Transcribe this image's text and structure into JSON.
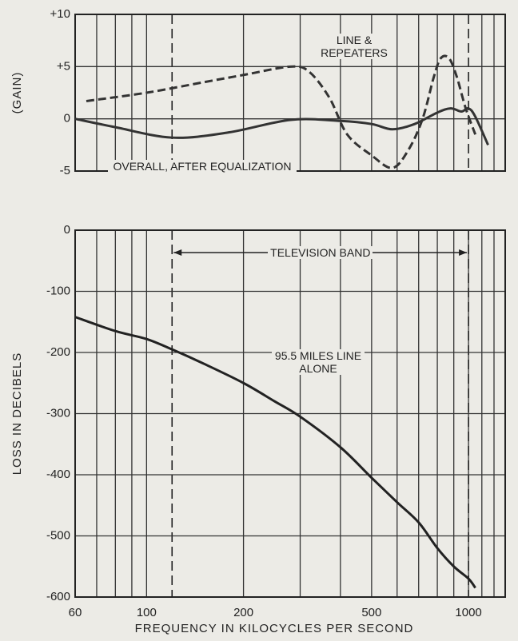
{
  "chart_data": [
    {
      "type": "line",
      "ylabel": "(GAIN)",
      "xscale": "log",
      "xlim": [
        60,
        1300
      ],
      "ylim": [
        -5,
        10
      ],
      "yticks": [
        {
          "value": 10,
          "label": "+10"
        },
        {
          "value": 5,
          "label": "+5"
        },
        0,
        -5
      ],
      "xgrid": [
        60,
        70,
        80,
        90,
        100,
        200,
        300,
        400,
        500,
        600,
        700,
        800,
        900,
        1100,
        1200
      ],
      "band_lines": [
        120,
        1000
      ],
      "series": [
        {
          "name": "LINE & REPEATERS",
          "color": "#333",
          "dashed": true,
          "x": [
            65,
            100,
            150,
            200,
            280,
            320,
            370,
            420,
            500,
            580,
            650,
            720,
            780,
            820,
            870,
            920,
            980,
            1050
          ],
          "values": [
            1.7,
            2.5,
            3.5,
            4.2,
            5,
            4.5,
            2,
            -1.5,
            -3.5,
            -4.7,
            -3,
            0,
            4,
            5.8,
            5.8,
            4,
            1,
            -1.5
          ]
        },
        {
          "name": "OVERALL, AFTER EQUALIZATION",
          "color": "#333",
          "dashed": false,
          "x": [
            60,
            80,
            120,
            180,
            280,
            400,
            500,
            580,
            680,
            800,
            880,
            950,
            1000,
            1050,
            1150
          ],
          "values": [
            0,
            -0.8,
            -1.8,
            -1.3,
            -0.1,
            -0.2,
            -0.5,
            -1,
            -0.5,
            0.6,
            1,
            0.7,
            1,
            0.2,
            -2.5
          ]
        }
      ]
    },
    {
      "type": "line",
      "ylabel": "LOSS IN DECIBELS",
      "xlabel": "FREQUENCY IN KILOCYCLES PER SECOND",
      "xscale": "log",
      "xlim": [
        60,
        1300
      ],
      "ylim": [
        -600,
        0
      ],
      "yticks": [
        0,
        -100,
        -200,
        -300,
        -400,
        -500,
        -600
      ],
      "xticks": [
        60,
        100,
        200,
        500,
        1000
      ],
      "xgrid": [
        70,
        80,
        90,
        300,
        400,
        600,
        700,
        800,
        900,
        1100,
        1200
      ],
      "band_lines": [
        120,
        1000
      ],
      "band_label": "TELEVISION BAND",
      "series": [
        {
          "name": "95.5 MILES LINE ALONE",
          "color": "#222",
          "dashed": false,
          "x": [
            60,
            80,
            100,
            120,
            150,
            200,
            250,
            300,
            400,
            500,
            600,
            700,
            800,
            900,
            1000,
            1050
          ],
          "values": [
            -142,
            -165,
            -178,
            -195,
            -218,
            -250,
            -280,
            -305,
            -355,
            -405,
            -445,
            -478,
            -520,
            -550,
            -570,
            -585
          ]
        }
      ]
    }
  ]
}
